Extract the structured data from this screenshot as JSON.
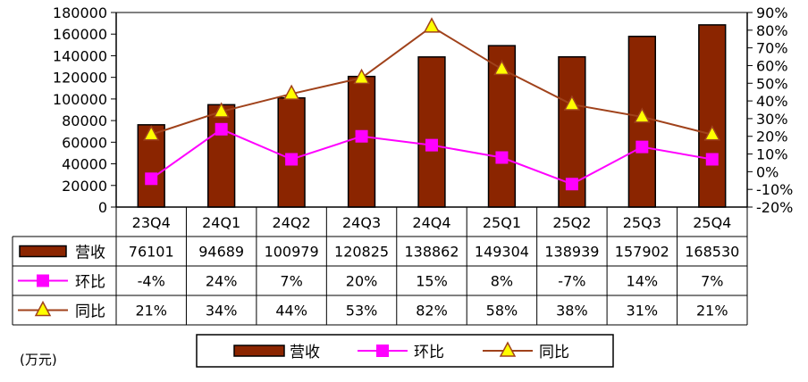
{
  "chart_data": {
    "type": "bar+line",
    "categories": [
      "23Q4",
      "24Q1",
      "24Q2",
      "24Q3",
      "24Q4",
      "25Q1",
      "25Q2",
      "25Q3",
      "25Q4"
    ],
    "series": [
      {
        "name": "营收",
        "type": "bar",
        "axis": "left",
        "color": "#8B2500",
        "values": [
          76101,
          94689,
          100979,
          120825,
          138862,
          149304,
          138939,
          157902,
          168530
        ],
        "table_labels": [
          "76101",
          "94689",
          "100979",
          "120825",
          "138862",
          "149304",
          "138939",
          "157902",
          "168530"
        ]
      },
      {
        "name": "环比",
        "type": "line",
        "axis": "right",
        "color": "#FF00FF",
        "marker": "square",
        "values": [
          -4,
          24,
          7,
          20,
          15,
          8,
          -7,
          14,
          7
        ],
        "table_labels": [
          "-4%",
          "24%",
          "7%",
          "20%",
          "15%",
          "8%",
          "-7%",
          "14%",
          "7%"
        ]
      },
      {
        "name": "同比",
        "type": "line",
        "axis": "right",
        "color": "#A0421B",
        "marker": "triangle",
        "marker_fill": "#FFFF00",
        "values": [
          21,
          34,
          44,
          53,
          82,
          58,
          38,
          31,
          21
        ],
        "table_labels": [
          "21%",
          "34%",
          "44%",
          "53%",
          "82%",
          "58%",
          "38%",
          "31%",
          "21%"
        ]
      }
    ],
    "y_left": {
      "min": 0,
      "max": 180000,
      "step": 20000,
      "ticks": [
        "0",
        "20000",
        "40000",
        "60000",
        "80000",
        "100000",
        "120000",
        "140000",
        "160000",
        "180000"
      ]
    },
    "y_right": {
      "min": -20,
      "max": 90,
      "step": 10,
      "ticks": [
        "-20%",
        "-10%",
        "0%",
        "10%",
        "20%",
        "30%",
        "40%",
        "50%",
        "60%",
        "70%",
        "80%",
        "90%"
      ]
    },
    "unit_label": "(万元)",
    "legend_position": "bottom",
    "data_table": true,
    "grid": false
  }
}
